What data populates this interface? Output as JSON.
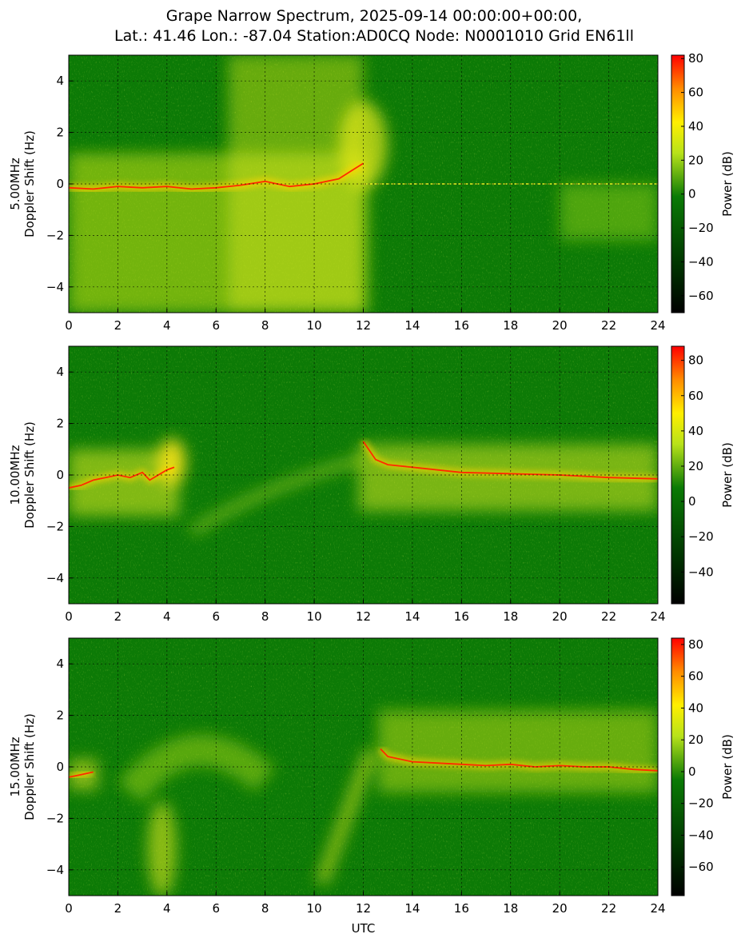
{
  "title_lines": [
    "Grape Narrow Spectrum, 2025-09-14 00:00:00+00:00,",
    "Lat.: 41.46 Lon.: -87.04 Station:AD0CQ Node: N0001010 Grid EN61ll"
  ],
  "colors": {
    "background_green": "#0c7a06",
    "colormap": [
      "#000000",
      "#003500",
      "#0a7a05",
      "#b8e21a",
      "#ffef00",
      "#ff8c00",
      "#ff0000"
    ]
  },
  "chart_data": [
    {
      "type": "heatmap",
      "panel": "5.00MHz",
      "ylabel_lines": [
        "5.00MHz",
        "Doppler Shift (Hz)"
      ],
      "xlabel": "",
      "xlim": [
        0,
        24
      ],
      "ylim": [
        -5,
        5
      ],
      "x_ticks": [
        "0",
        "2",
        "4",
        "6",
        "8",
        "10",
        "12",
        "14",
        "16",
        "18",
        "20",
        "22",
        "24"
      ],
      "y_ticks": [
        "4",
        "2",
        "0",
        "−2",
        "−4"
      ],
      "grid": true,
      "colorbar": {
        "label": "Power (dB)",
        "range": [
          -70,
          82
        ],
        "ticks": [
          "80",
          "60",
          "40",
          "20",
          "0",
          "−20",
          "−40",
          "−60"
        ]
      },
      "trace": {
        "x": [
          0,
          1,
          2,
          3,
          4,
          5,
          6,
          7,
          8,
          9,
          10,
          11,
          11.5,
          12
        ],
        "y": [
          -0.15,
          -0.2,
          -0.1,
          -0.15,
          -0.1,
          -0.2,
          -0.15,
          -0.05,
          0.1,
          -0.1,
          0.0,
          0.2,
          0.5,
          0.8
        ]
      },
      "features": {
        "strong_start": 0,
        "strong_end": 12.2,
        "carrier_line_from": 12,
        "carrier_line_to": 24,
        "carrier_line_y": 0.0,
        "late_spread_from": 20,
        "late_spread_to": 24
      }
    },
    {
      "type": "heatmap",
      "panel": "10.00MHz",
      "ylabel_lines": [
        "10.00MHz",
        "Doppler Shift (Hz)"
      ],
      "xlabel": "",
      "xlim": [
        0,
        24
      ],
      "ylim": [
        -5,
        5
      ],
      "x_ticks": [
        "0",
        "2",
        "4",
        "6",
        "8",
        "10",
        "12",
        "14",
        "16",
        "18",
        "20",
        "22",
        "24"
      ],
      "y_ticks": [
        "4",
        "2",
        "0",
        "−2",
        "−4"
      ],
      "grid": true,
      "colorbar": {
        "label": "Power (dB)",
        "range": [
          -58,
          88
        ],
        "ticks": [
          "80",
          "60",
          "40",
          "20",
          "0",
          "−20",
          "−40"
        ]
      },
      "trace": {
        "x": [
          0,
          0.5,
          1,
          1.5,
          2,
          2.5,
          3,
          3.3,
          4,
          4.3,
          12,
          12.5,
          13,
          14,
          16,
          18,
          20,
          22,
          24
        ],
        "y": [
          -0.5,
          -0.4,
          -0.2,
          -0.1,
          0.0,
          -0.1,
          0.1,
          -0.2,
          0.2,
          0.3,
          1.3,
          0.6,
          0.4,
          0.3,
          0.1,
          0.05,
          0.0,
          -0.1,
          -0.15
        ]
      },
      "features": {
        "strong_start": 0,
        "strong_end": 4.5,
        "resume_start": 11.8,
        "resume_end": 24,
        "curve_from": 5,
        "curve_to": 12
      }
    },
    {
      "type": "heatmap",
      "panel": "15.00MHz",
      "ylabel_lines": [
        "15.00MHz",
        "Doppler Shift (Hz)"
      ],
      "xlabel": "UTC",
      "xlim": [
        0,
        24
      ],
      "ylim": [
        -5,
        5
      ],
      "x_ticks": [
        "0",
        "2",
        "4",
        "6",
        "8",
        "10",
        "12",
        "14",
        "16",
        "18",
        "20",
        "22",
        "24"
      ],
      "y_ticks": [
        "4",
        "2",
        "0",
        "−2",
        "−4"
      ],
      "grid": true,
      "colorbar": {
        "label": "Power (dB)",
        "range": [
          -78,
          84
        ],
        "ticks": [
          "80",
          "60",
          "40",
          "20",
          "0",
          "−20",
          "−40",
          "−60"
        ]
      },
      "trace": {
        "x": [
          0,
          0.5,
          1.0,
          12.7,
          13,
          14,
          15,
          16,
          17,
          18,
          19,
          20,
          21,
          22,
          23,
          24
        ],
        "y": [
          -0.4,
          -0.3,
          -0.2,
          0.7,
          0.4,
          0.2,
          0.15,
          0.1,
          0.05,
          0.1,
          0.0,
          0.05,
          0.0,
          0.0,
          -0.1,
          -0.15
        ]
      },
      "features": {
        "strong_start": 12.6,
        "strong_end": 24,
        "dip_from": 3.3,
        "dip_to": 4.2,
        "dip_y": -4.6,
        "ramp_from": 10.3,
        "ramp_to": 12.3
      }
    }
  ]
}
